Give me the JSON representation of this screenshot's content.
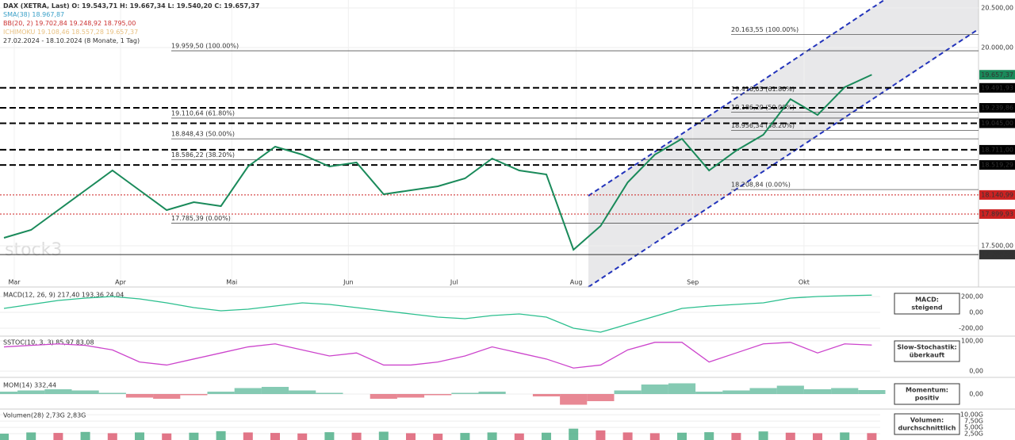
{
  "header": {
    "line1": "DAX (XETRA, Last)  O: 19.543,71  H: 19.667,34  L: 19.540,20  C: 19.657,37",
    "line2": "SMA(38) 18.967,87",
    "line3": "BB(20, 2) 19.702,84 19.248,92 18.795,00",
    "line4": "ICHIMOKU 19.108,46 18.557,28 19.657,37",
    "range": "27.02.2024 - 18.10.2024 (8 Monate, 1 Tag)",
    "watermark": "stock3"
  },
  "chart_data": [
    {
      "type": "line",
      "color": "#1a8a5a",
      "categories": [
        null,
        null,
        null,
        null,
        null,
        null,
        null,
        null,
        null,
        null,
        null,
        null,
        null,
        null,
        null,
        null,
        null,
        null,
        null,
        null,
        null,
        null,
        null,
        null,
        null,
        null,
        null,
        null,
        null,
        null,
        null,
        null,
        null
      ],
      "values": [
        17600,
        17700,
        17950,
        18200,
        18450,
        18200,
        17950,
        18050,
        18000,
        18500,
        18750,
        18650,
        18500,
        18550,
        18150,
        18200,
        18250,
        18350,
        18600,
        18450,
        18400,
        17450,
        17750,
        18300,
        18650,
        18850,
        18450,
        18700,
        18900,
        19350,
        19150,
        19500,
        19657.37
      ],
      "xticks": [
        {
          "value": 0.38,
          "label": "Mar"
        },
        {
          "value": 4.3,
          "label": "Apr"
        },
        {
          "value": 8.4,
          "label": "Mai"
        },
        {
          "value": 12.7,
          "label": "Jun"
        },
        {
          "value": 16.6,
          "label": "Jul"
        },
        {
          "value": 21.1,
          "label": "Aug"
        },
        {
          "value": 25.4,
          "label": "Sep"
        },
        {
          "value": 29.5,
          "label": "Okt"
        }
      ],
      "ylim": [
        17050,
        20600
      ],
      "yticks": [
        {
          "value": 20500,
          "label": "20.500,00"
        },
        {
          "value": 20000,
          "label": "20.000,00"
        },
        {
          "value": 17500,
          "label": "17.500,00"
        }
      ],
      "levels": [
        {
          "value": 19491.93,
          "label": "19.491,93",
          "style": "dashed",
          "color": "#000000"
        },
        {
          "value": 19239.86,
          "label": "19.239,86",
          "style": "dashed",
          "color": "#000000"
        },
        {
          "value": 19045.0,
          "label": "19.045,00",
          "style": "dashed",
          "color": "#000000"
        },
        {
          "value": 18711.0,
          "label": "18.711,00",
          "style": "dashed",
          "color": "#000000"
        },
        {
          "value": 18519.29,
          "label": "18.519,29",
          "style": "dashed",
          "color": "#000000"
        },
        {
          "value": 18140.99,
          "label": "18.140,99",
          "style": "dotted",
          "color": "#cc2222"
        },
        {
          "value": 17899.93,
          "label": "17.899,93",
          "style": "dotted",
          "color": "#cc2222"
        },
        {
          "value": 17388.55,
          "label": "17.388,55",
          "style": "solid",
          "color": "#333333"
        },
        {
          "value": 19657.37,
          "label": "19.657,37",
          "style": "last",
          "color": "#1a8a5a"
        }
      ],
      "fib_sets": [
        [
          {
            "value": 19959.5,
            "label": "19.959,50 (100.00%)"
          },
          {
            "value": 19110.64,
            "label": "19.110,64 (61.80%)"
          },
          {
            "value": 18848.43,
            "label": "18.848,43 (50.00%)"
          },
          {
            "value": 18586.22,
            "label": "18.586,22 (38.20%)"
          },
          {
            "value": 17785.39,
            "label": "17.785,39 (0.00%)"
          }
        ],
        [
          {
            "value": 20163.55,
            "label": "20.163,55 (100.00%)"
          },
          {
            "value": 19416.05,
            "label": "19.416,05 (61.80%)"
          },
          {
            "value": 19186.2,
            "label": "19.186,20 (50.00%)"
          },
          {
            "value": 18956.34,
            "label": "18.956,34 (38.20%)"
          },
          {
            "value": 18208.84,
            "label": "18.208,84 (0.00%)"
          }
        ]
      ]
    },
    {
      "type": "line",
      "title": "MACD(12, 26, 9) 217,40 193,36 24,04",
      "color": "#2bbf8e",
      "values": [
        50,
        100,
        150,
        180,
        200,
        170,
        120,
        60,
        20,
        40,
        80,
        120,
        100,
        60,
        20,
        -20,
        -60,
        -80,
        -40,
        -20,
        -60,
        -200,
        -250,
        -150,
        -50,
        50,
        80,
        100,
        120,
        180,
        200,
        210,
        217.4
      ],
      "ylim": [
        -260,
        260
      ],
      "yticks": [
        {
          "value": 200,
          "label": "200,00"
        },
        {
          "value": 0,
          "label": "0,00"
        },
        {
          "value": -200,
          "label": "-200,00"
        }
      ],
      "signal": [
        "MACD:",
        "steigend"
      ]
    },
    {
      "type": "line",
      "title": "SSTOC(10, 3, 3) 85,97 83,08",
      "color": "#cc44cc",
      "values": [
        80,
        85,
        90,
        85,
        70,
        30,
        20,
        40,
        60,
        80,
        90,
        70,
        50,
        60,
        20,
        20,
        30,
        50,
        80,
        60,
        40,
        10,
        20,
        70,
        95,
        95,
        30,
        60,
        90,
        95,
        60,
        90,
        85.97
      ],
      "ylim": [
        -5,
        105
      ],
      "yticks": [
        {
          "value": 100,
          "label": "100,00"
        },
        {
          "value": 0,
          "label": "0,00"
        }
      ],
      "signal": [
        "Slow-Stochastik:",
        "überkauft"
      ]
    },
    {
      "type": "bar",
      "title": "MOM(14) 332,44",
      "color": "#5cb89a",
      "negative_color": "#e06070",
      "values": [
        200,
        300,
        400,
        300,
        100,
        -300,
        -400,
        -100,
        200,
        500,
        600,
        300,
        100,
        0,
        -400,
        -300,
        -100,
        100,
        200,
        0,
        -200,
        -900,
        -600,
        300,
        800,
        900,
        200,
        300,
        500,
        700,
        400,
        500,
        332.44
      ],
      "ylim": [
        -1000,
        1000
      ],
      "yticks": [
        {
          "value": 0,
          "label": "0,00"
        }
      ],
      "signal": [
        "Momentum:",
        "positiv"
      ]
    },
    {
      "type": "bar",
      "title": "Volumen(28) 2,73G 2,83G",
      "color": "#3aa57a",
      "negative_color": "#d84860",
      "values": [
        2.5,
        3,
        2.8,
        3.2,
        2.7,
        3,
        2.6,
        2.9,
        3.5,
        3,
        2.8,
        2.6,
        3.1,
        2.9,
        3.3,
        2.7,
        2.5,
        2.8,
        3,
        2.6,
        2.9,
        4.5,
        3.8,
        3,
        2.7,
        2.9,
        3.1,
        2.8,
        3.4,
        2.9,
        2.7,
        3,
        2.73
      ],
      "ylim": [
        0,
        11
      ],
      "yticks": [
        {
          "value": 10,
          "label": "10,00G"
        },
        {
          "value": 7.5,
          "label": "7,50G"
        },
        {
          "value": 5,
          "label": "5,00G"
        },
        {
          "value": 2.5,
          "label": "2,50G"
        }
      ],
      "signal": [
        "Volumen:",
        "durchschnittlich"
      ]
    }
  ]
}
